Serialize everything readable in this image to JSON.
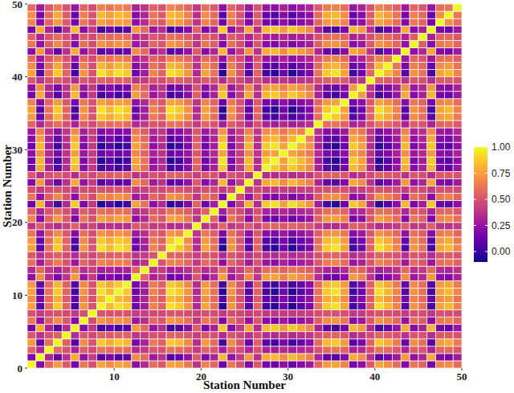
{
  "chart_data": {
    "type": "heatmap",
    "x_label": "Station Number",
    "y_label": "Station Number",
    "xlim": [
      0,
      50
    ],
    "ylim": [
      0,
      50
    ],
    "xticks": [
      10,
      20,
      30,
      40,
      50
    ],
    "yticks": [
      0,
      10,
      20,
      30,
      40,
      50
    ],
    "colorbar_lim": [
      -0.1,
      1.0
    ],
    "colorbar_ticks": [
      {
        "value": 0,
        "label": "0.00"
      },
      {
        "value": 0.25,
        "label": "0.25"
      },
      {
        "value": 0.5,
        "label": "0.50"
      },
      {
        "value": 0.75,
        "label": "0.75"
      },
      {
        "value": 1,
        "label": "1.00"
      }
    ],
    "cells": [
      [
        1
      ],
      [
        0.2,
        1
      ],
      [
        0.56,
        0.32,
        1
      ],
      [
        0.74,
        0.11,
        0.59,
        1
      ],
      [
        0.52,
        0.37,
        0.49,
        0.55,
        1
      ],
      [
        0.16,
        0.79,
        0.31,
        0.07,
        0.35,
        1
      ],
      [
        0.63,
        0.24,
        0.54,
        0.69,
        0.51,
        0.21,
        1
      ],
      [
        0.49,
        0.41,
        0.47,
        0.5,
        0.46,
        0.4,
        0.48,
        1
      ],
      [
        0.77,
        0.07,
        0.61,
        0.88,
        0.56,
        0.02,
        0.72,
        0.5,
        1
      ],
      [
        0.7,
        0.16,
        0.58,
        0.79,
        0.53,
        0.11,
        0.66,
        0.49,
        0.83,
        1
      ],
      [
        0.77,
        0.07,
        0.61,
        0.88,
        0.56,
        0.02,
        0.72,
        0.5,
        0.94,
        0.83,
        1
      ],
      [
        0.74,
        0.11,
        0.59,
        0.83,
        0.55,
        0.07,
        0.69,
        0.5,
        0.88,
        0.79,
        0.88,
        1
      ],
      [
        0.23,
        0.7,
        0.34,
        0.16,
        0.38,
        0.74,
        0.27,
        0.41,
        0.13,
        0.2,
        0.13,
        0.16,
        1
      ],
      [
        0.34,
        0.58,
        0.4,
        0.31,
        0.41,
        0.59,
        0.36,
        0.43,
        0.29,
        0.32,
        0.29,
        0.31,
        0.56,
        1
      ],
      [
        0.59,
        0.28,
        0.52,
        0.64,
        0.5,
        0.26,
        0.57,
        0.47,
        0.67,
        0.62,
        0.67,
        0.64,
        0.31,
        0.38,
        1
      ],
      [
        0.52,
        0.37,
        0.49,
        0.55,
        0.47,
        0.35,
        0.51,
        0.46,
        0.56,
        0.53,
        0.56,
        0.55,
        0.38,
        0.41,
        0.5,
        1
      ],
      [
        0.77,
        0.07,
        0.61,
        0.88,
        0.56,
        0.02,
        0.72,
        0.5,
        0.94,
        0.83,
        0.94,
        0.88,
        0.13,
        0.29,
        0.67,
        0.56,
        1
      ],
      [
        0.74,
        0.11,
        0.59,
        0.83,
        0.55,
        0.07,
        0.69,
        0.5,
        0.88,
        0.79,
        0.88,
        0.83,
        0.16,
        0.31,
        0.64,
        0.55,
        0.88,
        1
      ],
      [
        0.63,
        0.24,
        0.54,
        0.69,
        0.51,
        0.21,
        0.6,
        0.48,
        0.72,
        0.66,
        0.72,
        0.69,
        0.27,
        0.36,
        0.57,
        0.51,
        0.72,
        0.69,
        1
      ],
      [
        0.38,
        0.53,
        0.41,
        0.35,
        0.43,
        0.55,
        0.39,
        0.44,
        0.34,
        0.37,
        0.34,
        0.35,
        0.52,
        0.49,
        0.4,
        0.43,
        0.34,
        0.35,
        0.39,
        1
      ],
      [
        0.67,
        0.2,
        0.56,
        0.74,
        0.52,
        0.16,
        0.63,
        0.49,
        0.77,
        0.7,
        0.77,
        0.74,
        0.23,
        0.34,
        0.59,
        0.52,
        0.77,
        0.74,
        0.63,
        0.38,
        1
      ],
      [
        0.56,
        0.32,
        0.5,
        0.59,
        0.49,
        0.31,
        0.54,
        0.47,
        0.61,
        0.58,
        0.61,
        0.59,
        0.34,
        0.4,
        0.52,
        0.49,
        0.61,
        0.59,
        0.54,
        0.41,
        0.56,
        1
      ],
      [
        0.13,
        0.83,
        0.29,
        0.02,
        0.34,
        0.88,
        0.18,
        0.4,
        -0.04,
        0.07,
        -0.04,
        0.02,
        0.77,
        0.61,
        0.23,
        0.34,
        -0.04,
        0.02,
        0.18,
        0.56,
        0.13,
        0.29,
        1
      ],
      [
        0.63,
        0.24,
        0.54,
        0.69,
        0.51,
        0.21,
        0.6,
        0.48,
        0.72,
        0.66,
        0.72,
        0.69,
        0.27,
        0.36,
        0.57,
        0.51,
        0.72,
        0.69,
        0.6,
        0.39,
        0.63,
        0.54,
        0.18,
        1
      ],
      [
        0.49,
        0.41,
        0.47,
        0.5,
        0.46,
        0.4,
        0.48,
        0.46,
        0.5,
        0.49,
        0.5,
        0.5,
        0.41,
        0.43,
        0.47,
        0.46,
        0.5,
        0.5,
        0.48,
        0.44,
        0.49,
        0.47,
        0.4,
        0.48,
        1
      ],
      [
        0.2,
        0.74,
        0.32,
        0.11,
        0.37,
        0.79,
        0.24,
        0.41,
        0.07,
        0.16,
        0.07,
        0.11,
        0.7,
        0.58,
        0.28,
        0.37,
        0.07,
        0.11,
        0.24,
        0.53,
        0.2,
        0.32,
        0.83,
        0.24,
        0.41,
        1
      ],
      [
        0.52,
        0.37,
        0.49,
        0.55,
        0.47,
        0.35,
        0.51,
        0.46,
        0.56,
        0.53,
        0.56,
        0.55,
        0.38,
        0.41,
        0.5,
        0.47,
        0.56,
        0.55,
        0.51,
        0.43,
        0.52,
        0.49,
        0.34,
        0.51,
        0.46,
        0.37,
        1
      ],
      [
        0.16,
        0.79,
        0.31,
        0.07,
        0.35,
        0.83,
        0.21,
        0.4,
        0.02,
        0.11,
        0.02,
        0.07,
        0.74,
        0.59,
        0.26,
        0.35,
        0.02,
        0.07,
        0.21,
        0.55,
        0.16,
        0.31,
        0.88,
        0.21,
        0.4,
        0.79,
        0.35,
        1
      ],
      [
        0.13,
        0.83,
        0.29,
        0.02,
        0.34,
        0.88,
        0.18,
        0.4,
        -0.04,
        0.07,
        -0.04,
        0.02,
        0.77,
        0.61,
        0.23,
        0.34,
        -0.04,
        0.02,
        0.18,
        0.56,
        0.13,
        0.29,
        0.94,
        0.18,
        0.4,
        0.83,
        0.34,
        0.88,
        1
      ],
      [
        0.23,
        0.7,
        0.34,
        0.16,
        0.38,
        0.74,
        0.27,
        0.41,
        0.13,
        0.2,
        0.13,
        0.16,
        0.67,
        0.56,
        0.31,
        0.38,
        0.13,
        0.16,
        0.27,
        0.52,
        0.23,
        0.34,
        0.77,
        0.27,
        0.41,
        0.7,
        0.38,
        0.74,
        0.77,
        1
      ],
      [
        0.13,
        0.83,
        0.29,
        0.02,
        0.34,
        0.88,
        0.18,
        0.4,
        -0.04,
        0.07,
        -0.04,
        0.02,
        0.77,
        0.61,
        0.23,
        0.34,
        -0.04,
        0.02,
        0.18,
        0.56,
        0.13,
        0.29,
        0.94,
        0.18,
        0.4,
        0.83,
        0.34,
        0.88,
        0.94,
        0.77,
        1
      ],
      [
        0.2,
        0.74,
        0.32,
        0.11,
        0.37,
        0.79,
        0.24,
        0.41,
        0.07,
        0.16,
        0.07,
        0.11,
        0.7,
        0.58,
        0.28,
        0.37,
        0.07,
        0.11,
        0.24,
        0.53,
        0.2,
        0.32,
        0.83,
        0.24,
        0.41,
        0.74,
        0.37,
        0.79,
        0.83,
        0.7,
        0.83,
        1
      ],
      [
        0.27,
        0.66,
        0.36,
        0.21,
        0.39,
        0.69,
        0.3,
        0.42,
        0.18,
        0.24,
        0.18,
        0.21,
        0.63,
        0.54,
        0.33,
        0.39,
        0.18,
        0.21,
        0.3,
        0.51,
        0.27,
        0.36,
        0.72,
        0.3,
        0.42,
        0.66,
        0.39,
        0.69,
        0.72,
        0.63,
        0.72,
        0.66,
        1
      ],
      [
        0.56,
        0.32,
        0.5,
        0.59,
        0.49,
        0.31,
        0.54,
        0.47,
        0.61,
        0.58,
        0.61,
        0.59,
        0.34,
        0.4,
        0.52,
        0.49,
        0.61,
        0.59,
        0.54,
        0.41,
        0.56,
        0.5,
        0.29,
        0.54,
        0.47,
        0.32,
        0.49,
        0.31,
        0.29,
        0.34,
        0.29,
        0.32,
        0.36,
        1
      ],
      [
        0.74,
        0.11,
        0.59,
        0.83,
        0.55,
        0.07,
        0.69,
        0.5,
        0.88,
        0.79,
        0.88,
        0.83,
        0.16,
        0.31,
        0.64,
        0.55,
        0.88,
        0.83,
        0.69,
        0.35,
        0.74,
        0.59,
        0.02,
        0.69,
        0.5,
        0.11,
        0.55,
        0.07,
        0.02,
        0.16,
        0.02,
        0.11,
        0.21,
        0.59,
        1
      ],
      [
        0.77,
        0.07,
        0.61,
        0.88,
        0.56,
        0.02,
        0.72,
        0.5,
        0.94,
        0.83,
        0.94,
        0.88,
        0.13,
        0.29,
        0.67,
        0.56,
        0.94,
        0.88,
        0.72,
        0.34,
        0.77,
        0.61,
        -0.04,
        0.72,
        0.5,
        0.07,
        0.56,
        0.02,
        -0.04,
        0.13,
        -0.04,
        0.07,
        0.18,
        0.61,
        0.88,
        1
      ],
      [
        0.67,
        0.2,
        0.56,
        0.74,
        0.52,
        0.16,
        0.63,
        0.49,
        0.77,
        0.7,
        0.77,
        0.74,
        0.23,
        0.34,
        0.59,
        0.52,
        0.77,
        0.74,
        0.63,
        0.38,
        0.67,
        0.56,
        0.13,
        0.63,
        0.49,
        0.2,
        0.52,
        0.16,
        0.13,
        0.23,
        0.13,
        0.2,
        0.27,
        0.56,
        0.74,
        0.77,
        1
      ],
      [
        0.16,
        0.79,
        0.31,
        0.07,
        0.35,
        0.83,
        0.21,
        0.4,
        0.02,
        0.11,
        0.02,
        0.07,
        0.74,
        0.59,
        0.26,
        0.35,
        0.02,
        0.07,
        0.21,
        0.55,
        0.16,
        0.31,
        0.88,
        0.21,
        0.4,
        0.79,
        0.35,
        0.83,
        0.88,
        0.74,
        0.88,
        0.79,
        0.69,
        0.31,
        0.07,
        0.02,
        0.16,
        1
      ],
      [
        0.23,
        0.7,
        0.34,
        0.16,
        0.38,
        0.74,
        0.27,
        0.41,
        0.13,
        0.2,
        0.13,
        0.16,
        0.67,
        0.56,
        0.31,
        0.38,
        0.13,
        0.16,
        0.27,
        0.52,
        0.23,
        0.34,
        0.77,
        0.27,
        0.41,
        0.7,
        0.38,
        0.74,
        0.77,
        0.67,
        0.77,
        0.7,
        0.63,
        0.34,
        0.16,
        0.13,
        0.23,
        0.74,
        1
      ],
      [
        0.52,
        0.37,
        0.49,
        0.55,
        0.47,
        0.35,
        0.51,
        0.46,
        0.56,
        0.53,
        0.56,
        0.55,
        0.38,
        0.41,
        0.5,
        0.47,
        0.56,
        0.55,
        0.51,
        0.43,
        0.52,
        0.49,
        0.34,
        0.51,
        0.46,
        0.37,
        0.47,
        0.35,
        0.34,
        0.38,
        0.34,
        0.37,
        0.39,
        0.49,
        0.55,
        0.56,
        0.52,
        0.35,
        0.38,
        1
      ],
      [
        0.77,
        0.07,
        0.61,
        0.88,
        0.56,
        0.02,
        0.72,
        0.5,
        0.94,
        0.83,
        0.94,
        0.88,
        0.13,
        0.29,
        0.67,
        0.56,
        0.94,
        0.88,
        0.72,
        0.34,
        0.77,
        0.61,
        -0.04,
        0.72,
        0.5,
        0.07,
        0.56,
        0.02,
        -0.04,
        0.13,
        -0.04,
        0.07,
        0.18,
        0.61,
        0.88,
        0.94,
        0.77,
        0.02,
        0.13,
        0.56,
        1
      ],
      [
        0.7,
        0.16,
        0.58,
        0.79,
        0.53,
        0.11,
        0.66,
        0.49,
        0.83,
        0.74,
        0.83,
        0.79,
        0.2,
        0.32,
        0.62,
        0.53,
        0.83,
        0.79,
        0.66,
        0.37,
        0.7,
        0.58,
        0.07,
        0.66,
        0.49,
        0.16,
        0.53,
        0.11,
        0.07,
        0.2,
        0.07,
        0.16,
        0.24,
        0.58,
        0.79,
        0.83,
        0.7,
        0.11,
        0.2,
        0.53,
        0.83,
        1
      ],
      [
        0.59,
        0.28,
        0.52,
        0.64,
        0.5,
        0.26,
        0.57,
        0.47,
        0.67,
        0.62,
        0.67,
        0.64,
        0.31,
        0.38,
        0.55,
        0.5,
        0.67,
        0.64,
        0.57,
        0.4,
        0.59,
        0.52,
        0.23,
        0.57,
        0.47,
        0.28,
        0.5,
        0.26,
        0.23,
        0.31,
        0.23,
        0.28,
        0.33,
        0.52,
        0.64,
        0.67,
        0.59,
        0.26,
        0.31,
        0.5,
        0.67,
        0.62,
        1
      ],
      [
        0.2,
        0.74,
        0.32,
        0.11,
        0.37,
        0.79,
        0.24,
        0.41,
        0.07,
        0.16,
        0.07,
        0.11,
        0.7,
        0.58,
        0.28,
        0.37,
        0.07,
        0.11,
        0.24,
        0.53,
        0.2,
        0.32,
        0.83,
        0.24,
        0.41,
        0.74,
        0.37,
        0.79,
        0.83,
        0.7,
        0.83,
        0.74,
        0.66,
        0.32,
        0.11,
        0.07,
        0.2,
        0.79,
        0.7,
        0.37,
        0.07,
        0.16,
        0.28,
        1
      ],
      [
        0.63,
        0.24,
        0.54,
        0.69,
        0.51,
        0.21,
        0.6,
        0.48,
        0.72,
        0.66,
        0.72,
        0.69,
        0.27,
        0.36,
        0.57,
        0.51,
        0.72,
        0.69,
        0.6,
        0.39,
        0.63,
        0.54,
        0.18,
        0.6,
        0.48,
        0.24,
        0.51,
        0.21,
        0.18,
        0.27,
        0.18,
        0.24,
        0.3,
        0.54,
        0.69,
        0.72,
        0.63,
        0.21,
        0.27,
        0.51,
        0.72,
        0.66,
        0.57,
        0.24,
        1
      ],
      [
        0.56,
        0.32,
        0.5,
        0.59,
        0.49,
        0.31,
        0.54,
        0.47,
        0.61,
        0.58,
        0.61,
        0.59,
        0.34,
        0.4,
        0.52,
        0.49,
        0.61,
        0.59,
        0.54,
        0.41,
        0.56,
        0.5,
        0.29,
        0.54,
        0.47,
        0.32,
        0.49,
        0.31,
        0.29,
        0.34,
        0.29,
        0.32,
        0.36,
        0.5,
        0.59,
        0.61,
        0.56,
        0.31,
        0.34,
        0.49,
        0.61,
        0.58,
        0.52,
        0.32,
        0.54,
        1
      ],
      [
        0.16,
        0.79,
        0.31,
        0.07,
        0.35,
        0.83,
        0.21,
        0.4,
        0.02,
        0.11,
        0.02,
        0.07,
        0.74,
        0.59,
        0.26,
        0.35,
        0.02,
        0.07,
        0.21,
        0.55,
        0.16,
        0.31,
        0.88,
        0.21,
        0.4,
        0.79,
        0.35,
        0.83,
        0.88,
        0.74,
        0.88,
        0.79,
        0.69,
        0.31,
        0.07,
        0.02,
        0.16,
        0.83,
        0.74,
        0.35,
        0.02,
        0.11,
        0.26,
        0.79,
        0.21,
        0.31,
        1
      ],
      [
        0.67,
        0.2,
        0.56,
        0.74,
        0.52,
        0.16,
        0.63,
        0.49,
        0.77,
        0.7,
        0.77,
        0.74,
        0.23,
        0.34,
        0.59,
        0.52,
        0.77,
        0.74,
        0.63,
        0.38,
        0.67,
        0.56,
        0.13,
        0.63,
        0.49,
        0.2,
        0.52,
        0.16,
        0.13,
        0.23,
        0.13,
        0.2,
        0.27,
        0.56,
        0.74,
        0.77,
        0.67,
        0.16,
        0.23,
        0.52,
        0.77,
        0.7,
        0.59,
        0.2,
        0.63,
        0.56,
        0.16,
        1
      ],
      [
        0.7,
        0.16,
        0.58,
        0.79,
        0.53,
        0.11,
        0.66,
        0.49,
        0.83,
        0.74,
        0.83,
        0.79,
        0.2,
        0.32,
        0.62,
        0.53,
        0.83,
        0.79,
        0.66,
        0.37,
        0.7,
        0.58,
        0.07,
        0.66,
        0.49,
        0.16,
        0.53,
        0.11,
        0.07,
        0.2,
        0.07,
        0.16,
        0.24,
        0.58,
        0.79,
        0.83,
        0.7,
        0.11,
        0.2,
        0.53,
        0.83,
        0.74,
        0.62,
        0.16,
        0.66,
        0.58,
        0.11,
        0.7,
        1
      ],
      [
        0.59,
        0.28,
        0.52,
        0.64,
        0.5,
        0.26,
        0.57,
        0.47,
        0.67,
        0.62,
        0.67,
        0.64,
        0.31,
        0.38,
        0.55,
        0.5,
        0.67,
        0.64,
        0.57,
        0.4,
        0.59,
        0.52,
        0.23,
        0.57,
        0.47,
        0.28,
        0.5,
        0.26,
        0.23,
        0.31,
        0.23,
        0.28,
        0.33,
        0.52,
        0.64,
        0.67,
        0.59,
        0.26,
        0.31,
        0.5,
        0.67,
        0.62,
        0.55,
        0.28,
        0.57,
        0.52,
        0.26,
        0.59,
        0.62,
        1
      ]
    ]
  }
}
